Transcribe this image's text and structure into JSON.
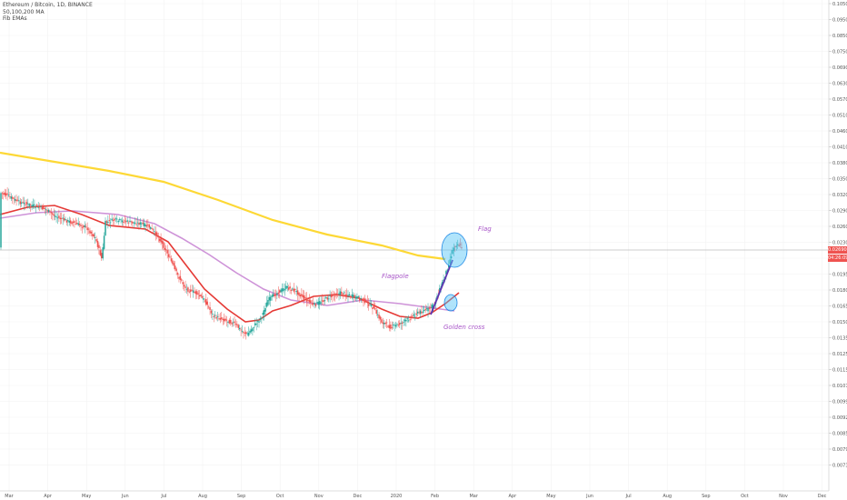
{
  "header": {
    "symbol": "Ethereum / Bitcoin, 1D, BINANCE",
    "indicator_ma": "50,100,200 MA",
    "indicator_ema": "Fib EMAs"
  },
  "price_badges": {
    "last_price": "0.026905",
    "countdown": "04:26:09"
  },
  "annotations": {
    "flag": "Flag",
    "flagpole": "Flagpole",
    "golden_cross": "Golden cross"
  },
  "colors": {
    "up_candle": "#26a69a",
    "down_candle": "#ef5350",
    "ma50": "#e53935",
    "ma100": "#ce93d8",
    "ma200": "#fdd835",
    "highlight_circle": "#4fc3f7",
    "annotation_text": "#a855c8",
    "flagpole_line": "#5e35b1",
    "price_badge_bg": "#ef5350"
  },
  "chart_data": {
    "type": "candlestick",
    "x_ticks": [
      "Mar",
      "Apr",
      "May",
      "Jun",
      "Jul",
      "Aug",
      "Sep",
      "Oct",
      "Nov",
      "Dec",
      "2020",
      "Feb",
      "Mar",
      "Apr",
      "May",
      "Jun",
      "Jul",
      "Aug",
      "Sep",
      "Oct",
      "Nov",
      "Dec"
    ],
    "y_ticks": [
      "0.105000",
      "0.095000",
      "0.085000",
      "0.075000",
      "0.069000",
      "0.063000",
      "0.057000",
      "0.051000",
      "0.046000",
      "0.041000",
      "0.038000",
      "0.035000",
      "0.032000",
      "0.029000",
      "0.026000",
      "0.023000",
      "0.021000",
      "0.019500",
      "0.018000",
      "0.016500",
      "0.015000",
      "0.013500",
      "0.012500",
      "0.011500",
      "0.010700",
      "0.009900",
      "0.009200",
      "0.008500",
      "0.007900",
      "0.007340"
    ],
    "y_scale": "log",
    "last_price": 0.026905,
    "series_closes_approx": [
      {
        "date": "2019-03",
        "value": 0.037
      },
      {
        "date": "2019-04",
        "value": 0.033
      },
      {
        "date": "2019-05",
        "value": 0.027
      },
      {
        "date": "2019-06",
        "value": 0.031
      },
      {
        "date": "2019-07",
        "value": 0.024
      },
      {
        "date": "2019-08",
        "value": 0.018
      },
      {
        "date": "2019-09",
        "value": 0.017
      },
      {
        "date": "2019-10",
        "value": 0.0215
      },
      {
        "date": "2019-11",
        "value": 0.0205
      },
      {
        "date": "2019-12",
        "value": 0.0185
      },
      {
        "date": "2020-01",
        "value": 0.019
      },
      {
        "date": "2020-02",
        "value": 0.0265
      }
    ],
    "moving_averages": [
      "50 MA",
      "100 MA",
      "200 MA"
    ]
  }
}
